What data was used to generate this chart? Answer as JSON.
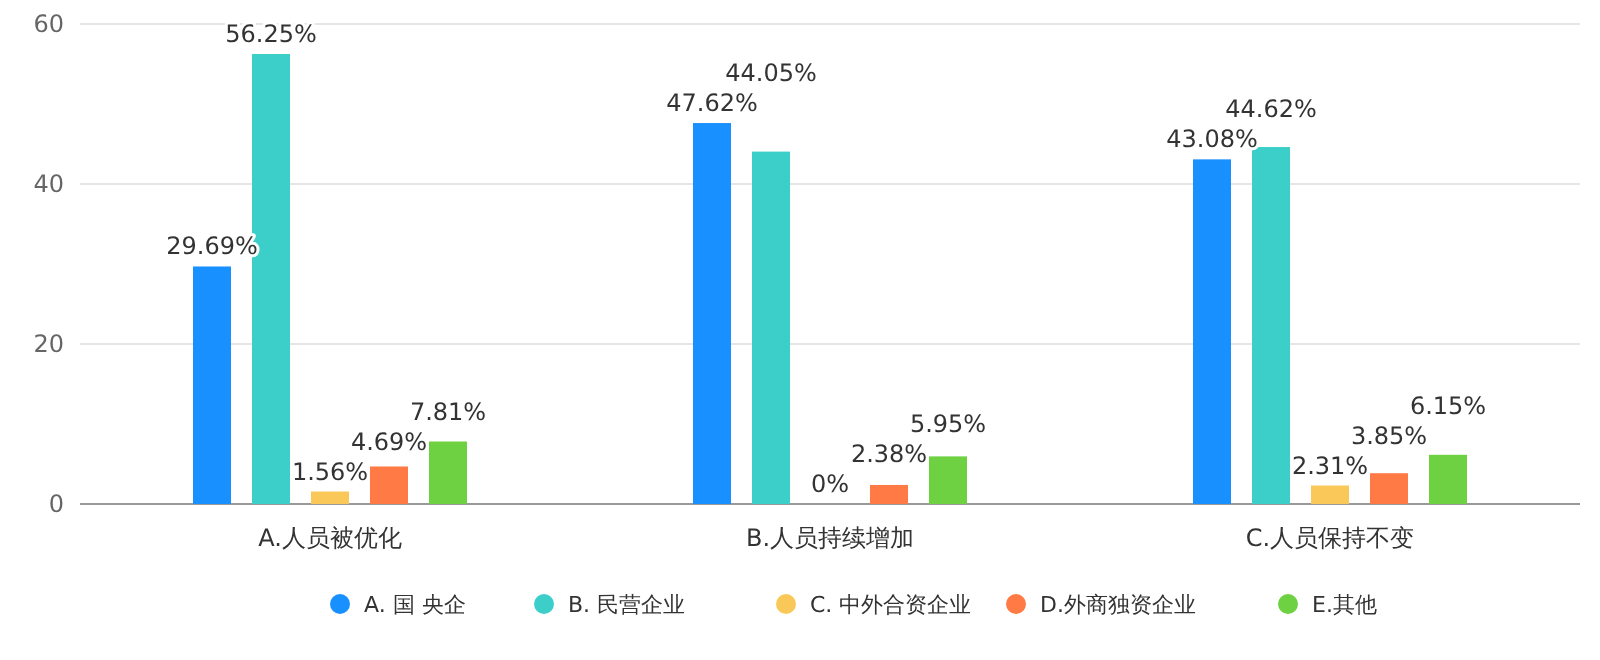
{
  "chart_data": {
    "type": "bar",
    "categories": [
      "A.人员被优化",
      "B.人员持续增加",
      "C.人员保持不变"
    ],
    "series": [
      {
        "name": "A. 国 央企",
        "color": "#1890ff",
        "values": [
          29.69,
          47.62,
          43.08
        ],
        "value_labels": [
          "29.69%",
          "47.62%",
          "43.08%"
        ]
      },
      {
        "name": "B. 民营企业",
        "color": "#3ccfca",
        "values": [
          56.25,
          44.05,
          44.62
        ],
        "value_labels": [
          "56.25%",
          "44.05%",
          "44.62%"
        ]
      },
      {
        "name": "C. 中外合资企业",
        "color": "#fac858",
        "values": [
          1.56,
          0,
          2.31
        ],
        "value_labels": [
          "1.56%",
          "0%",
          "2.31%"
        ]
      },
      {
        "name": "D.外商独资企业",
        "color": "#ff7a45",
        "values": [
          4.69,
          2.38,
          3.85
        ],
        "value_labels": [
          "4.69%",
          "2.38%",
          "3.85%"
        ]
      },
      {
        "name": "E.其他",
        "color": "#6dd142",
        "values": [
          7.81,
          5.95,
          6.15
        ],
        "value_labels": [
          "7.81%",
          "5.95%",
          "6.15%"
        ]
      }
    ],
    "ylim": [
      0,
      60
    ],
    "yticks": [
      0,
      20,
      40,
      60
    ],
    "grid": "y",
    "legend": "bottom"
  }
}
